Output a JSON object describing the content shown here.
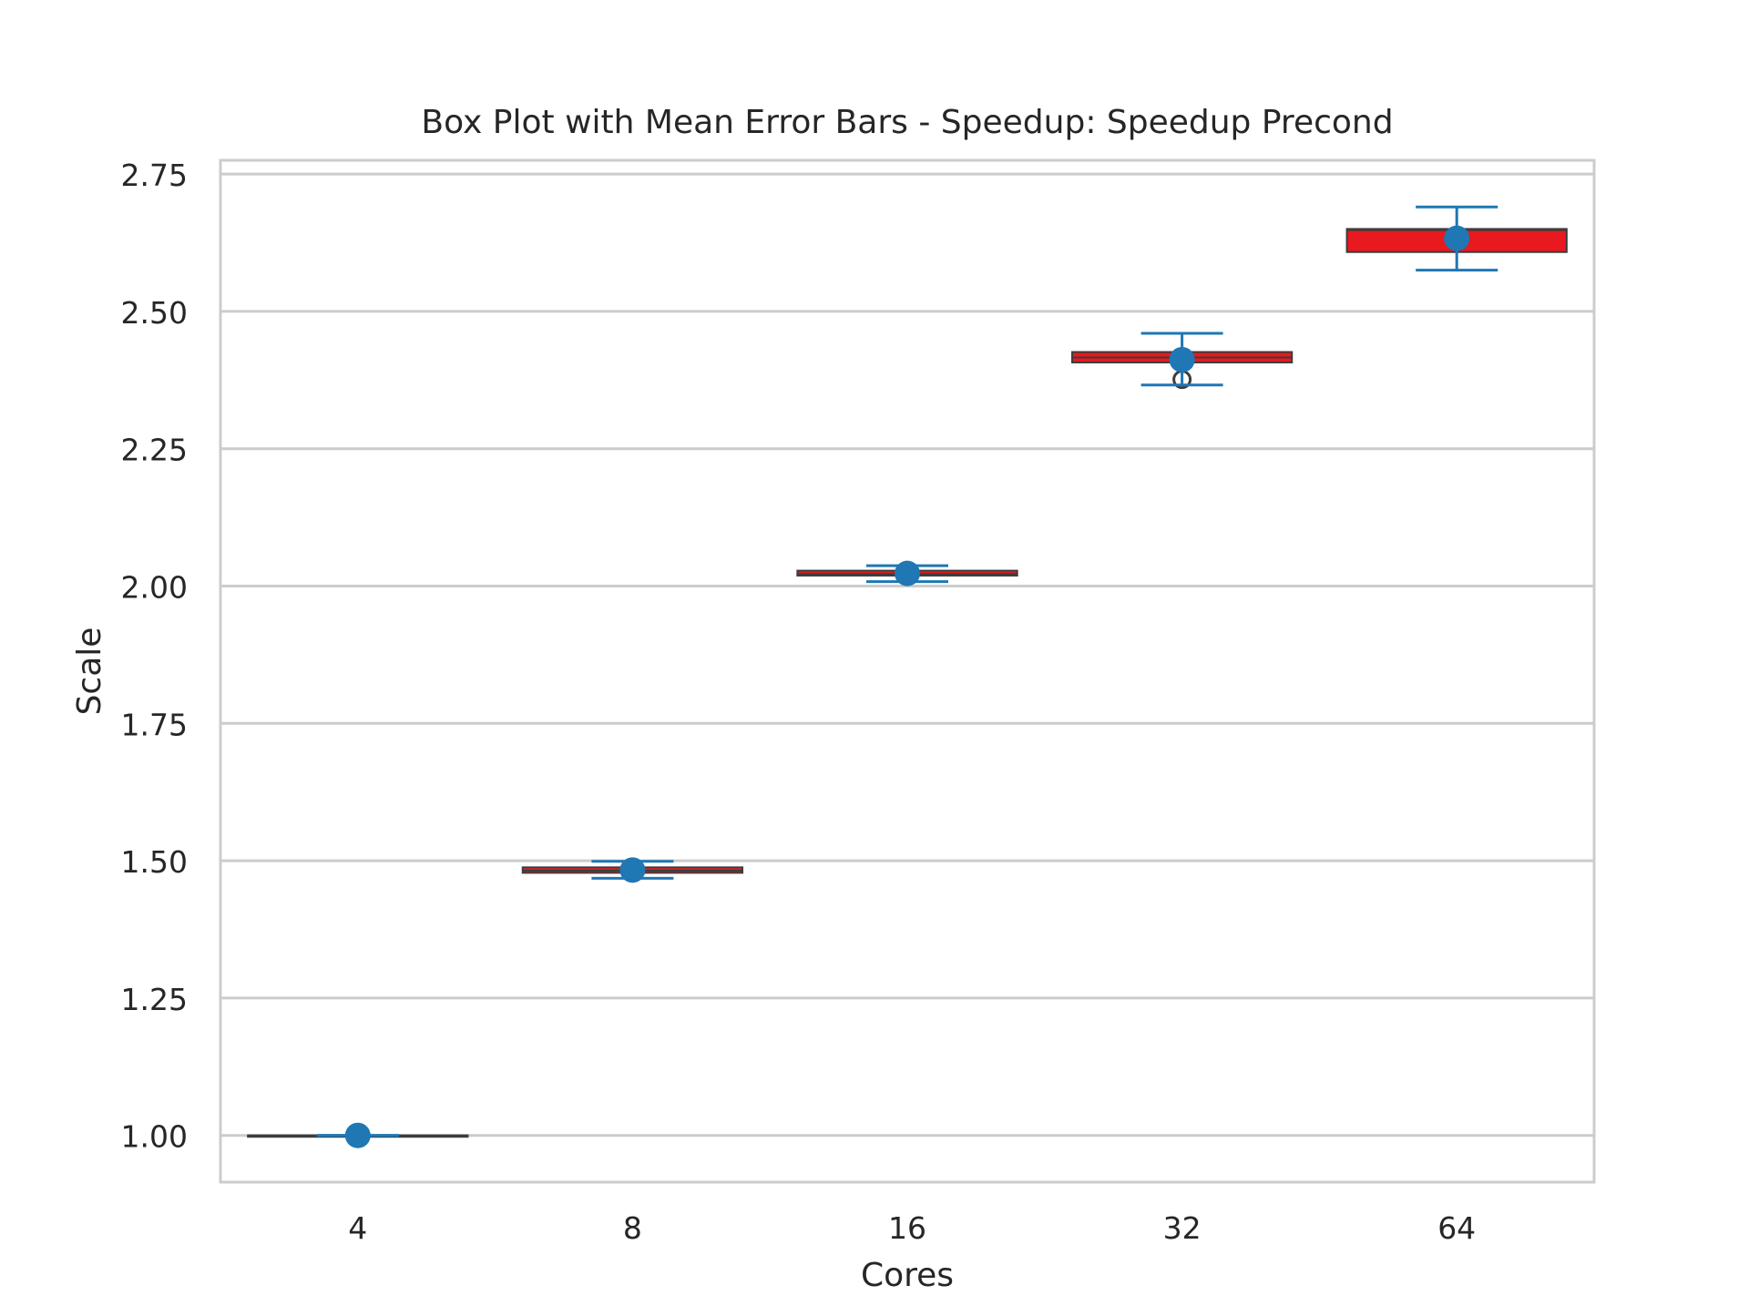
{
  "chart_data": {
    "type": "box",
    "title": "Box Plot with Mean Error Bars - Speedup: Speedup Precond",
    "xlabel": "Cores",
    "ylabel": "Scale",
    "categories": [
      "4",
      "8",
      "16",
      "32",
      "64"
    ],
    "ylim": [
      0.915,
      2.775
    ],
    "yticks": [
      1.0,
      1.25,
      1.5,
      1.75,
      2.0,
      2.25,
      2.5,
      2.75
    ],
    "ytick_labels": [
      "1.00",
      "1.25",
      "1.50",
      "1.75",
      "2.00",
      "2.25",
      "2.50",
      "2.75"
    ],
    "grid": "y",
    "boxes": [
      {
        "category": "4",
        "q1": 1.0,
        "median": 1.0,
        "q3": 1.0,
        "whisker_low": 1.0,
        "whisker_high": 1.0,
        "outliers": []
      },
      {
        "category": "8",
        "q1": 1.478,
        "median": 1.482,
        "q3": 1.488,
        "whisker_low": 1.478,
        "whisker_high": 1.488,
        "outliers": []
      },
      {
        "category": "16",
        "q1": 2.019,
        "median": 2.022,
        "q3": 2.028,
        "whisker_low": 2.019,
        "whisker_high": 2.028,
        "outliers": []
      },
      {
        "category": "32",
        "q1": 2.407,
        "median": 2.416,
        "q3": 2.426,
        "whisker_low": 2.407,
        "whisker_high": 2.426,
        "outliers": [
          2.376
        ]
      },
      {
        "category": "64",
        "q1": 2.608,
        "median": 2.648,
        "q3": 2.65,
        "whisker_low": 2.608,
        "whisker_high": 2.65,
        "outliers": []
      }
    ],
    "mean_error_bars": [
      {
        "category": "4",
        "mean": 1.0,
        "low": 1.0,
        "high": 1.0
      },
      {
        "category": "8",
        "mean": 1.483,
        "low": 1.468,
        "high": 1.499
      },
      {
        "category": "16",
        "mean": 2.023,
        "low": 2.008,
        "high": 2.037
      },
      {
        "category": "32",
        "mean": 2.412,
        "low": 2.366,
        "high": 2.46
      },
      {
        "category": "64",
        "mean": 2.633,
        "low": 2.575,
        "high": 2.69
      }
    ],
    "colors": {
      "box_fill": "#e8191f",
      "box_edge": "#3d3d3d",
      "mean_marker": "#1f77b4",
      "error_bar": "#1f77b4",
      "grid": "#cccccc",
      "frame": "#cccccc",
      "text": "#262626"
    }
  }
}
